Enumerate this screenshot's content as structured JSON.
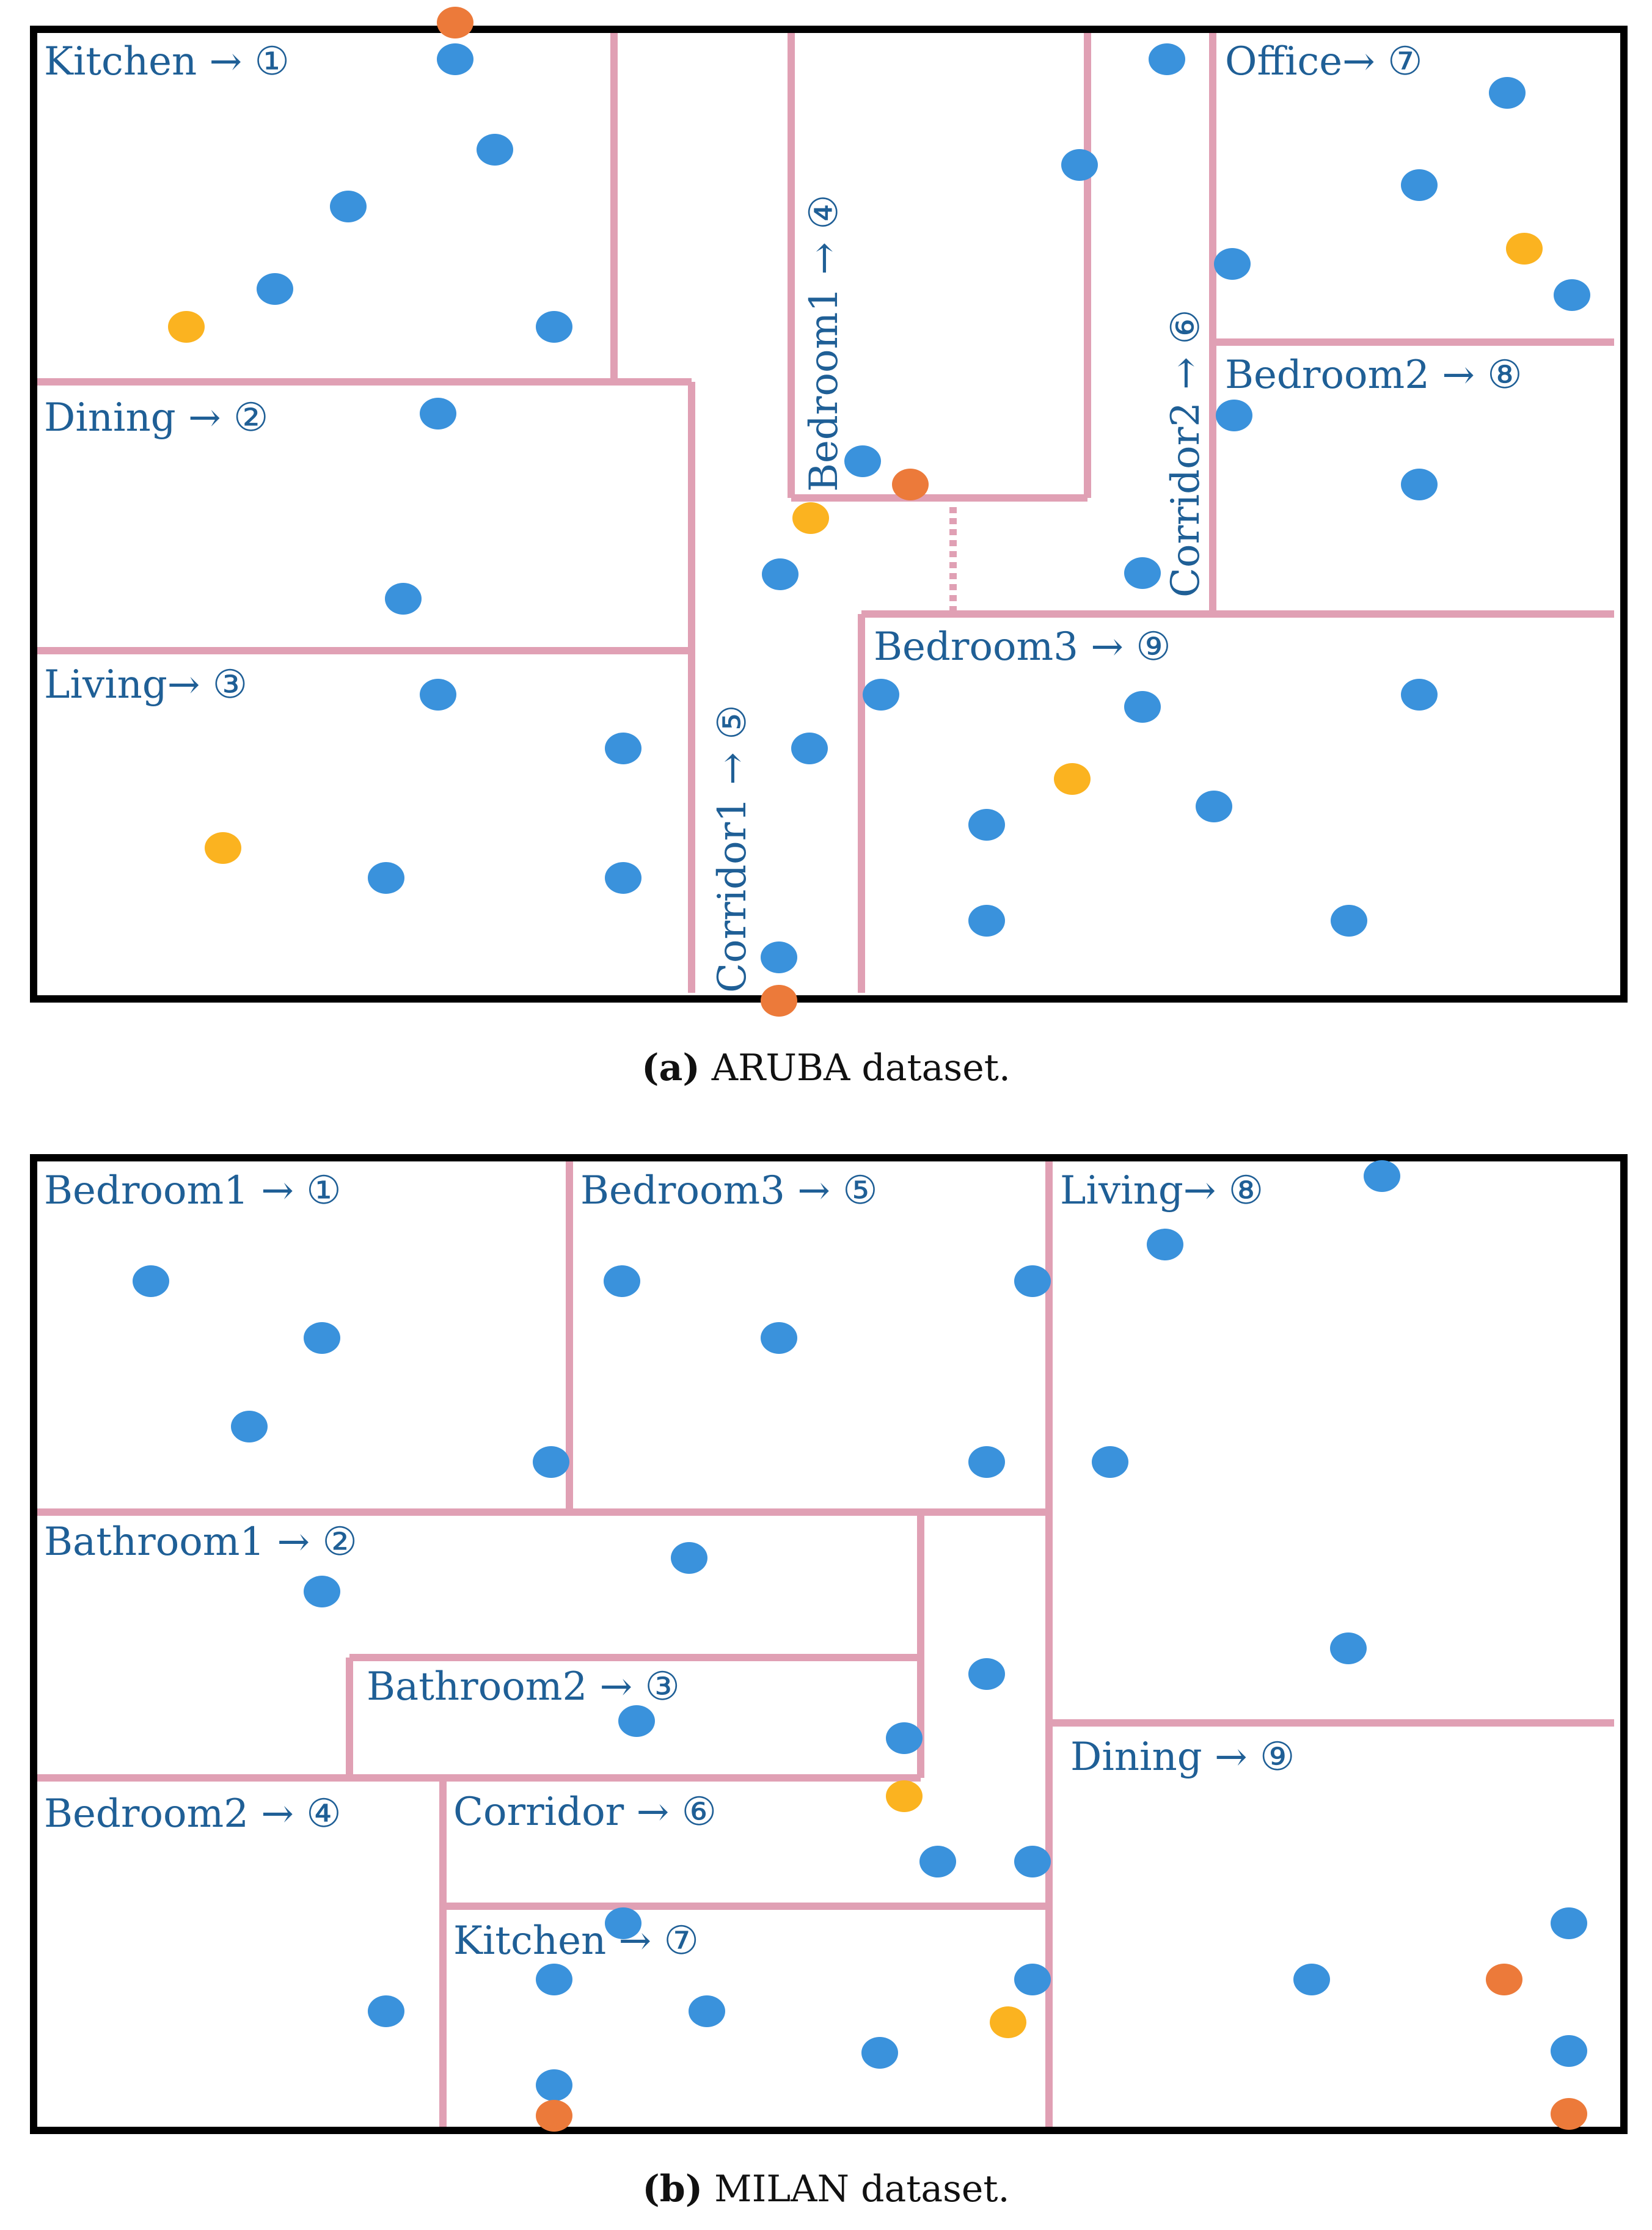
{
  "colors": {
    "outer_wall": "#000000",
    "room_wall": "#e0a0b4",
    "label_text": "#1f5f96",
    "motion_sensor": "#3a92dc",
    "door_sensor": "#ec7a3a",
    "temperature_sensor": "#fbb320"
  },
  "panel_a": {
    "rooms": [
      {
        "id": "kitchen",
        "label": "Kitchen → ①"
      },
      {
        "id": "dining",
        "label": "Dining → ②"
      },
      {
        "id": "living",
        "label": "Living→ ③"
      },
      {
        "id": "bedroom1",
        "label": "Bedroom1 → ④"
      },
      {
        "id": "corridor1",
        "label": "Corridor1 → ⑤"
      },
      {
        "id": "corridor2",
        "label": "Corridor2 → ⑥"
      },
      {
        "id": "office",
        "label": "Office→ ⑦"
      },
      {
        "id": "bedroom2",
        "label": "Bedroom2 → ⑧"
      },
      {
        "id": "bedroom3",
        "label": "Bedroom3 → ⑨"
      }
    ],
    "caption": {
      "prefix": "(a)",
      "text": " ARUBA dataset."
    }
  },
  "panel_b": {
    "rooms": [
      {
        "id": "bedroom1",
        "label": "Bedroom1 → ①"
      },
      {
        "id": "bathroom1",
        "label": "Bathroom1 → ②"
      },
      {
        "id": "bathroom2",
        "label": "Bathroom2 → ③"
      },
      {
        "id": "bedroom2",
        "label": "Bedroom2 → ④"
      },
      {
        "id": "bedroom3",
        "label": "Bedroom3 → ⑤"
      },
      {
        "id": "corridor",
        "label": "Corridor  → ⑥"
      },
      {
        "id": "kitchen",
        "label": "Kitchen → ⑦"
      },
      {
        "id": "living",
        "label": "Living→ ⑧"
      },
      {
        "id": "dining",
        "label": "Dining → ⑨"
      }
    ],
    "caption": {
      "prefix": "(b)",
      "text": " MILAN dataset."
    }
  }
}
